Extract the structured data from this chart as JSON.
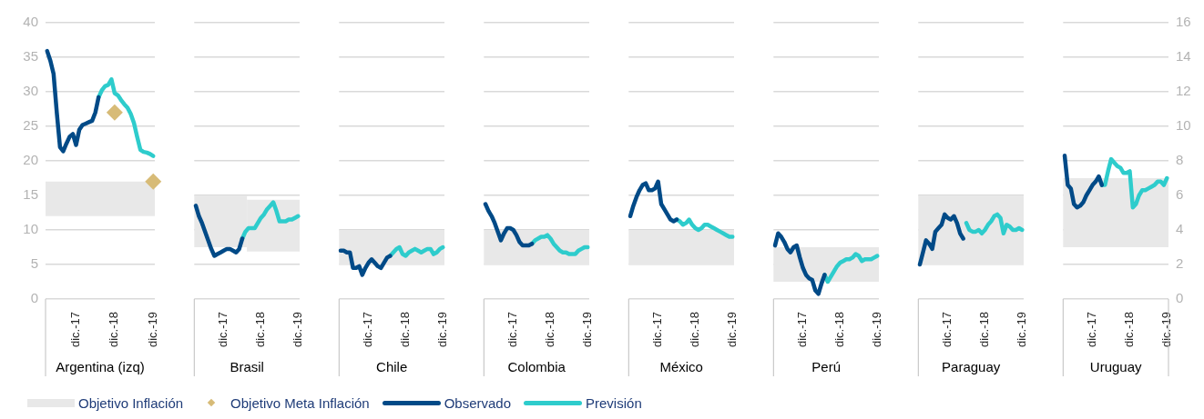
{
  "chart_data": [
    {
      "type": "line",
      "xlabel": "Argentina (izq)",
      "categories": [
        null,
        null,
        null,
        null,
        null,
        null,
        null,
        null,
        null,
        "dic.-17",
        null,
        null,
        null,
        null,
        null,
        null,
        null,
        null,
        null,
        null,
        null,
        "dic.-18",
        null,
        null,
        null,
        null,
        null,
        null,
        null,
        null,
        null,
        null,
        null,
        "dic.-19"
      ],
      "ylim": [
        0,
        40
      ],
      "yticks": [
        0,
        5,
        10,
        15,
        20,
        25,
        30,
        35,
        40
      ],
      "grid": "y",
      "legend": "bottom",
      "bands": [
        {
          "axis": "y",
          "from": 12,
          "to": 17,
          "label": "Objetivo Inflación",
          "color": "#e8e8e8"
        }
      ],
      "series": [
        {
          "name": "Objetivo Meta Inflación",
          "type": "scatter",
          "marker": "diamond",
          "color": "#d7bb77",
          "values": [
            null,
            null,
            null,
            null,
            null,
            null,
            null,
            null,
            null,
            null,
            null,
            null,
            null,
            null,
            null,
            null,
            null,
            null,
            null,
            null,
            null,
            27,
            null,
            null,
            null,
            null,
            null,
            null,
            null,
            null,
            null,
            null,
            null,
            17
          ]
        },
        {
          "name": "Observado",
          "color": "#004a87",
          "values": [
            35.9,
            34.5,
            32.6,
            27,
            22,
            21.4,
            22.5,
            23.5,
            23.9,
            22.3,
            24.5,
            25.2,
            25.4,
            25.6,
            25.8,
            27,
            29.2,
            null,
            null,
            null,
            null,
            null,
            null,
            null,
            null,
            null,
            null,
            null,
            null,
            null,
            null,
            null,
            null,
            null
          ]
        },
        {
          "name": "Previsión",
          "color": "#2ecccc",
          "values": [
            null,
            null,
            null,
            null,
            null,
            null,
            null,
            null,
            null,
            null,
            null,
            null,
            null,
            null,
            null,
            null,
            29.2,
            30.2,
            30.8,
            31,
            31.8,
            29.8,
            29.5,
            28.8,
            28.2,
            27.7,
            26.8,
            25.5,
            23.5,
            21.6,
            21.3,
            21.2,
            21,
            20.7
          ]
        }
      ]
    },
    {
      "type": "line",
      "xlabel": "Brasil",
      "categories": [
        null,
        null,
        null,
        null,
        null,
        null,
        null,
        null,
        null,
        "dic.-17",
        null,
        null,
        null,
        null,
        null,
        null,
        null,
        null,
        null,
        null,
        null,
        "dic.-18",
        null,
        null,
        null,
        null,
        null,
        null,
        null,
        null,
        null,
        null,
        null,
        "dic.-19"
      ],
      "y2lim": [
        0,
        16
      ],
      "y2ticks": [
        0,
        2,
        4,
        6,
        8,
        10,
        12,
        14,
        16
      ],
      "grid": "y",
      "tick_labels": "x",
      "bands": [
        {
          "axis": "y2",
          "from": 3,
          "to": 6,
          "color": "#e8e8e8"
        },
        {
          "axis": "y2",
          "from": 2.75,
          "to": 5.75,
          "color": "#e8e8e8"
        }
      ],
      "series": [
        {
          "axis": "y2",
          "color": "#004a87",
          "values": [
            5.4,
            4.8,
            4.4,
            3.9,
            3.4,
            2.9,
            2.5,
            2.6,
            2.7,
            2.8,
            2.9,
            2.9,
            2.8,
            2.7,
            2.9,
            3.5,
            null,
            null,
            null,
            null,
            null,
            null,
            null,
            null,
            null,
            null,
            null,
            null,
            null,
            null,
            null,
            null,
            null,
            null
          ]
        },
        {
          "axis": "y2",
          "color": "#2ecccc",
          "values": [
            null,
            null,
            null,
            null,
            null,
            null,
            null,
            null,
            null,
            null,
            null,
            null,
            null,
            null,
            null,
            3.5,
            3.9,
            4.1,
            4.1,
            4.1,
            4.4,
            4.7,
            4.9,
            5.2,
            5.4,
            5.6,
            5.1,
            4.5,
            4.5,
            4.5,
            4.6,
            4.6,
            4.7,
            4.8
          ]
        }
      ]
    },
    {
      "type": "line",
      "xlabel": "Chile",
      "categories": [
        null,
        null,
        null,
        null,
        null,
        null,
        null,
        null,
        null,
        "dic.-17",
        null,
        null,
        null,
        null,
        null,
        null,
        null,
        null,
        null,
        null,
        null,
        "dic.-18",
        null,
        null,
        null,
        null,
        null,
        null,
        null,
        null,
        null,
        null,
        null,
        "dic.-19"
      ],
      "y2lim": [
        0,
        16
      ],
      "y2ticks": [
        0,
        2,
        4,
        6,
        8,
        10,
        12,
        14,
        16
      ],
      "grid": "y",
      "tick_labels": "x",
      "bands": [
        {
          "axis": "y2",
          "from": 2,
          "to": 4,
          "color": "#e8e8e8"
        }
      ],
      "series": [
        {
          "axis": "y2",
          "color": "#004a87",
          "values": [
            2.8,
            2.8,
            2.7,
            2.7,
            1.8,
            1.8,
            1.9,
            1.4,
            1.8,
            2.1,
            2.3,
            2.1,
            1.9,
            1.8,
            2.1,
            2.4,
            2.5,
            null,
            null,
            null,
            null,
            null,
            null,
            null,
            null,
            null,
            null,
            null,
            null,
            null,
            null,
            null,
            null,
            null
          ]
        },
        {
          "axis": "y2",
          "color": "#2ecccc",
          "values": [
            null,
            null,
            null,
            null,
            null,
            null,
            null,
            null,
            null,
            null,
            null,
            null,
            null,
            null,
            null,
            null,
            2.5,
            2.7,
            2.9,
            3.0,
            2.6,
            2.5,
            2.7,
            2.8,
            2.9,
            2.8,
            2.7,
            2.8,
            2.9,
            2.9,
            2.6,
            2.7,
            2.9,
            3.0
          ]
        }
      ]
    },
    {
      "type": "line",
      "xlabel": "Colombia",
      "categories": [
        null,
        null,
        null,
        null,
        null,
        null,
        null,
        null,
        null,
        "dic.-17",
        null,
        null,
        null,
        null,
        null,
        null,
        null,
        null,
        null,
        null,
        null,
        "dic.-18",
        null,
        null,
        null,
        null,
        null,
        null,
        null,
        null,
        null,
        null,
        null,
        "dic.-19"
      ],
      "y2lim": [
        0,
        16
      ],
      "y2ticks": [
        0,
        2,
        4,
        6,
        8,
        10,
        12,
        14,
        16
      ],
      "grid": "y",
      "tick_labels": "x",
      "bands": [
        {
          "axis": "y2",
          "from": 2,
          "to": 4,
          "color": "#e8e8e8"
        }
      ],
      "series": [
        {
          "axis": "y2",
          "color": "#004a87",
          "values": [
            5.5,
            5.1,
            4.8,
            4.4,
            3.9,
            3.4,
            3.8,
            4.1,
            4.1,
            4.0,
            3.7,
            3.3,
            3.1,
            3.1,
            3.1,
            3.2,
            null,
            null,
            null,
            null,
            null,
            null,
            null,
            null,
            null,
            null,
            null,
            null,
            null,
            null,
            null,
            null,
            null,
            null
          ]
        },
        {
          "axis": "y2",
          "color": "#2ecccc",
          "values": [
            null,
            null,
            null,
            null,
            null,
            null,
            null,
            null,
            null,
            null,
            null,
            null,
            null,
            null,
            null,
            3.2,
            3.4,
            3.5,
            3.6,
            3.6,
            3.7,
            3.5,
            3.2,
            3.0,
            2.8,
            2.7,
            2.7,
            2.6,
            2.6,
            2.6,
            2.8,
            2.9,
            3.0,
            3.0
          ]
        }
      ]
    },
    {
      "type": "line",
      "xlabel": "México",
      "categories": [
        null,
        null,
        null,
        null,
        null,
        null,
        null,
        null,
        null,
        "dic.-17",
        null,
        null,
        null,
        null,
        null,
        null,
        null,
        null,
        null,
        null,
        null,
        "dic.-18",
        null,
        null,
        null,
        null,
        null,
        null,
        null,
        null,
        null,
        null,
        null,
        "dic.-19"
      ],
      "y2lim": [
        0,
        16
      ],
      "y2ticks": [
        0,
        2,
        4,
        6,
        8,
        10,
        12,
        14,
        16
      ],
      "grid": "y",
      "tick_labels": "x",
      "bands": [
        {
          "axis": "y2",
          "from": 2,
          "to": 4,
          "color": "#e8e8e8"
        }
      ],
      "series": [
        {
          "axis": "y2",
          "color": "#004a87",
          "values": [
            4.8,
            5.4,
            5.9,
            6.3,
            6.6,
            6.7,
            6.3,
            6.3,
            6.4,
            6.8,
            5.5,
            5.2,
            4.9,
            4.6,
            4.5,
            4.6,
            null,
            null,
            null,
            null,
            null,
            null,
            null,
            null,
            null,
            null,
            null,
            null,
            null,
            null,
            null,
            null,
            null,
            null
          ]
        },
        {
          "axis": "y2",
          "color": "#2ecccc",
          "values": [
            null,
            null,
            null,
            null,
            null,
            null,
            null,
            null,
            null,
            null,
            null,
            null,
            null,
            null,
            null,
            4.6,
            4.5,
            4.3,
            4.4,
            4.6,
            4.3,
            4.1,
            4.0,
            4.1,
            4.3,
            4.3,
            4.2,
            4.1,
            4.0,
            3.9,
            3.8,
            3.7,
            3.6,
            3.6
          ]
        }
      ]
    },
    {
      "type": "line",
      "xlabel": "Perú",
      "categories": [
        null,
        null,
        null,
        null,
        null,
        null,
        null,
        null,
        null,
        "dic.-17",
        null,
        null,
        null,
        null,
        null,
        null,
        null,
        null,
        null,
        null,
        null,
        "dic.-18",
        null,
        null,
        null,
        null,
        null,
        null,
        null,
        null,
        null,
        null,
        null,
        "dic.-19"
      ],
      "y2lim": [
        0,
        16
      ],
      "y2ticks": [
        0,
        2,
        4,
        6,
        8,
        10,
        12,
        14,
        16
      ],
      "grid": "y",
      "tick_labels": "x",
      "bands": [
        {
          "axis": "y2",
          "from": 1,
          "to": 3,
          "color": "#e8e8e8"
        }
      ],
      "series": [
        {
          "axis": "y2",
          "color": "#004a87",
          "values": [
            3.1,
            3.8,
            3.6,
            3.3,
            2.9,
            2.7,
            3.0,
            3.1,
            2.4,
            1.8,
            1.4,
            1.2,
            1.1,
            0.5,
            0.3,
            0.9,
            1.4,
            null,
            null,
            null,
            null,
            null,
            null,
            null,
            null,
            null,
            null,
            null,
            null,
            null,
            null,
            null,
            null,
            null
          ]
        },
        {
          "axis": "y2",
          "color": "#2ecccc",
          "values": [
            null,
            null,
            null,
            null,
            null,
            null,
            null,
            null,
            null,
            null,
            null,
            null,
            null,
            null,
            null,
            null,
            1.4,
            1.0,
            1.3,
            1.6,
            1.9,
            2.1,
            2.2,
            2.3,
            2.3,
            2.4,
            2.6,
            2.5,
            2.2,
            2.3,
            2.3,
            2.3,
            2.4,
            2.5
          ]
        }
      ]
    },
    {
      "type": "line",
      "xlabel": "Paraguay",
      "categories": [
        null,
        null,
        null,
        null,
        null,
        null,
        null,
        null,
        null,
        "dic.-17",
        null,
        null,
        null,
        null,
        null,
        null,
        null,
        null,
        null,
        null,
        null,
        "dic.-18",
        null,
        null,
        null,
        null,
        null,
        null,
        null,
        null,
        null,
        null,
        null,
        "dic.-19"
      ],
      "y2lim": [
        0,
        16
      ],
      "y2ticks": [
        0,
        2,
        4,
        6,
        8,
        10,
        12,
        14,
        16
      ],
      "grid": "y",
      "tick_labels": "x",
      "bands": [
        {
          "axis": "y2",
          "from": 2,
          "to": 6,
          "color": "#e8e8e8"
        }
      ],
      "series": [
        {
          "axis": "y2",
          "color": "#004a87",
          "values": [
            2.0,
            2.7,
            3.4,
            3.2,
            2.9,
            3.9,
            4.1,
            4.3,
            4.9,
            4.7,
            4.6,
            4.8,
            4.4,
            3.8,
            3.5,
            null,
            null,
            null,
            null,
            null,
            null,
            null,
            null,
            null,
            null,
            null,
            null,
            null,
            null,
            null,
            null,
            null,
            null,
            null
          ]
        },
        {
          "axis": "y2",
          "color": "#2ecccc",
          "values": [
            null,
            null,
            null,
            null,
            null,
            null,
            null,
            null,
            null,
            null,
            null,
            null,
            null,
            null,
            null,
            4.4,
            4.0,
            3.9,
            3.9,
            4.0,
            3.8,
            4.0,
            4.3,
            4.5,
            4.8,
            4.9,
            4.7,
            3.8,
            4.3,
            4.2,
            4.0,
            4.0,
            4.1,
            4.0
          ]
        }
      ]
    },
    {
      "type": "line",
      "xlabel": "Uruguay",
      "categories": [
        null,
        null,
        null,
        null,
        null,
        null,
        null,
        null,
        null,
        "dic.-17",
        null,
        null,
        null,
        null,
        null,
        null,
        null,
        null,
        null,
        null,
        null,
        "dic.-18",
        null,
        null,
        null,
        null,
        null,
        null,
        null,
        null,
        null,
        null,
        null,
        "dic.-19"
      ],
      "y2lim": [
        0,
        16
      ],
      "y2ticks": [
        0,
        2,
        4,
        6,
        8,
        10,
        12,
        14,
        16
      ],
      "grid": "y",
      "bands": [
        {
          "axis": "y2",
          "from": 3,
          "to": 7,
          "color": "#e8e8e8"
        }
      ],
      "series": [
        {
          "axis": "y2",
          "color": "#004a87",
          "values": [
            8.3,
            6.6,
            6.4,
            5.5,
            5.3,
            5.4,
            5.6,
            6.0,
            6.3,
            6.6,
            6.8,
            7.1,
            6.6,
            null,
            null,
            null,
            null,
            null,
            null,
            null,
            null,
            null,
            null,
            null,
            null,
            null,
            null,
            null,
            null,
            null,
            null,
            null,
            null,
            null
          ]
        },
        {
          "axis": "y2",
          "color": "#2ecccc",
          "values": [
            null,
            null,
            null,
            null,
            null,
            null,
            null,
            null,
            null,
            null,
            null,
            null,
            6.6,
            6.6,
            7.4,
            8.1,
            7.9,
            7.7,
            7.6,
            7.3,
            7.3,
            7.4,
            5.3,
            5.5,
            6.0,
            6.3,
            6.3,
            6.4,
            6.5,
            6.6,
            6.8,
            6.8,
            6.6,
            7.0
          ]
        }
      ]
    }
  ]
}
